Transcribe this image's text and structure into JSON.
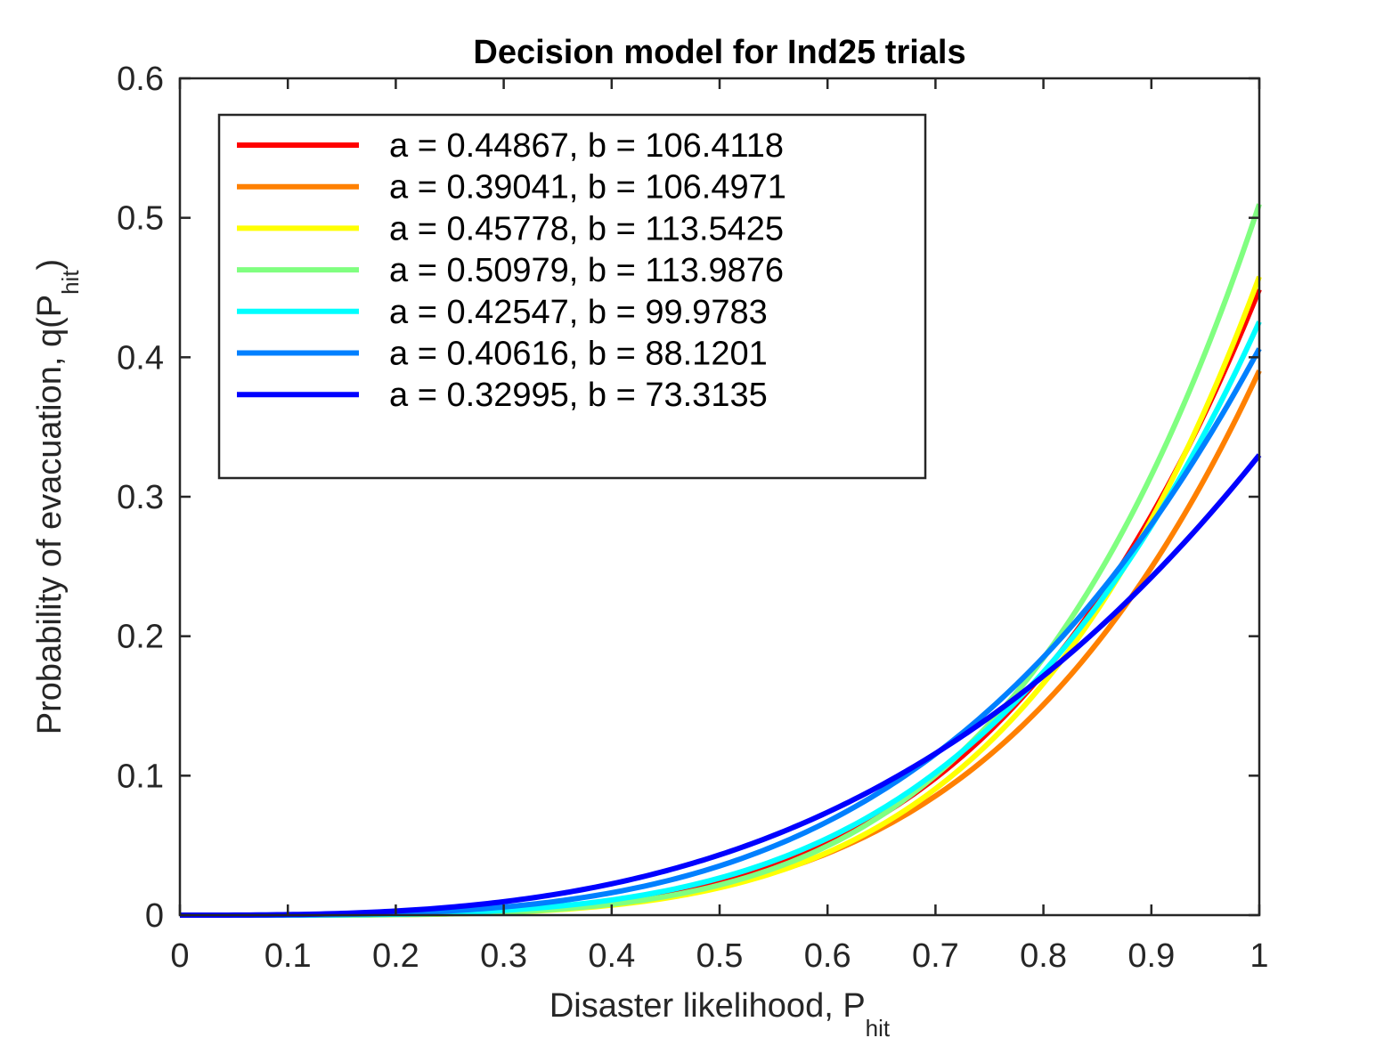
{
  "chart_data": {
    "type": "line",
    "title": "Decision model for Ind25 trials",
    "xlabel": "Disaster likelihood, P",
    "xlabel_subscript": "hit",
    "ylabel": "Probability of evacuation, q(P",
    "ylabel_subscript": "hit",
    "ylabel_suffix": ")",
    "xlim": [
      0,
      1
    ],
    "ylim": [
      0,
      0.6
    ],
    "xticks": [
      "0",
      "0.1",
      "0.2",
      "0.3",
      "0.4",
      "0.5",
      "0.6",
      "0.7",
      "0.8",
      "0.9",
      "1"
    ],
    "yticks": [
      "0",
      "0.1",
      "0.2",
      "0.3",
      "0.4",
      "0.5",
      "0.6"
    ],
    "grid": false,
    "legend_position": "top-left",
    "x": [
      0,
      0.1,
      0.2,
      0.3,
      0.4,
      0.5,
      0.6,
      0.7,
      0.8,
      0.9,
      1.0
    ],
    "series": [
      {
        "name": "a = 0.44867, b = 106.4118",
        "color": "#ff0000",
        "a": 0.44867,
        "b": 106.4118
      },
      {
        "name": "a = 0.39041, b = 106.4971",
        "color": "#ff8000",
        "a": 0.39041,
        "b": 106.4971
      },
      {
        "name": "a = 0.45778, b = 113.5425",
        "color": "#ffff00",
        "a": 0.45778,
        "b": 113.5425
      },
      {
        "name": "a = 0.50979, b = 113.9876",
        "color": "#80ff80",
        "a": 0.50979,
        "b": 113.9876
      },
      {
        "name": "a = 0.42547, b = 99.9783",
        "color": "#00ffff",
        "a": 0.42547,
        "b": 99.9783
      },
      {
        "name": "a = 0.40616, b = 88.1201",
        "color": "#0080ff",
        "a": 0.40616,
        "b": 88.1201
      },
      {
        "name": "a = 0.32995, b = 73.3135",
        "color": "#0000ff",
        "a": 0.32995,
        "b": 73.3135
      }
    ]
  }
}
